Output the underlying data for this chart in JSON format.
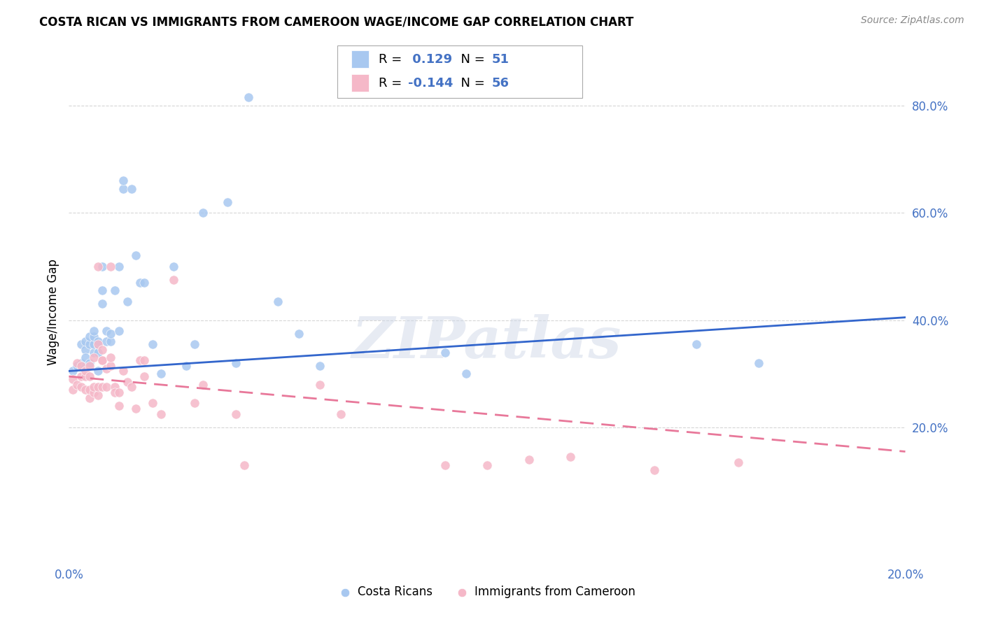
{
  "title": "COSTA RICAN VS IMMIGRANTS FROM CAMEROON WAGE/INCOME GAP CORRELATION CHART",
  "source": "Source: ZipAtlas.com",
  "ylabel_label": "Wage/Income Gap",
  "xlim": [
    0.0,
    0.2
  ],
  "ylim": [
    -0.05,
    0.88
  ],
  "xticks": [
    0.0,
    0.04,
    0.08,
    0.12,
    0.16,
    0.2
  ],
  "xticklabels": [
    "0.0%",
    "",
    "",
    "",
    "",
    "20.0%"
  ],
  "yticks": [
    0.2,
    0.4,
    0.6,
    0.8
  ],
  "yticklabels": [
    "20.0%",
    "40.0%",
    "60.0%",
    "80.0%"
  ],
  "blue_color": "#A8C8F0",
  "pink_color": "#F5B8C8",
  "blue_line_color": "#3366CC",
  "pink_line_color": "#E8789A",
  "tick_color": "#4472C4",
  "R_blue": 0.129,
  "N_blue": 51,
  "R_pink": -0.144,
  "N_pink": 56,
  "blue_scatter_x": [
    0.001,
    0.002,
    0.003,
    0.003,
    0.004,
    0.004,
    0.004,
    0.005,
    0.005,
    0.005,
    0.006,
    0.006,
    0.006,
    0.006,
    0.007,
    0.007,
    0.007,
    0.007,
    0.008,
    0.008,
    0.008,
    0.009,
    0.009,
    0.01,
    0.01,
    0.011,
    0.012,
    0.012,
    0.013,
    0.013,
    0.014,
    0.015,
    0.016,
    0.017,
    0.018,
    0.02,
    0.022,
    0.025,
    0.028,
    0.03,
    0.032,
    0.038,
    0.04,
    0.043,
    0.05,
    0.055,
    0.06,
    0.09,
    0.095,
    0.15,
    0.165
  ],
  "blue_scatter_y": [
    0.305,
    0.315,
    0.32,
    0.355,
    0.345,
    0.36,
    0.33,
    0.32,
    0.355,
    0.37,
    0.34,
    0.355,
    0.37,
    0.38,
    0.34,
    0.355,
    0.36,
    0.305,
    0.5,
    0.455,
    0.43,
    0.38,
    0.36,
    0.36,
    0.375,
    0.455,
    0.38,
    0.5,
    0.645,
    0.66,
    0.435,
    0.645,
    0.52,
    0.47,
    0.47,
    0.355,
    0.3,
    0.5,
    0.315,
    0.355,
    0.6,
    0.62,
    0.32,
    0.815,
    0.435,
    0.375,
    0.315,
    0.34,
    0.3,
    0.355,
    0.32
  ],
  "pink_scatter_x": [
    0.001,
    0.001,
    0.002,
    0.002,
    0.003,
    0.003,
    0.003,
    0.004,
    0.004,
    0.004,
    0.005,
    0.005,
    0.005,
    0.005,
    0.006,
    0.006,
    0.006,
    0.007,
    0.007,
    0.007,
    0.007,
    0.008,
    0.008,
    0.008,
    0.008,
    0.009,
    0.009,
    0.01,
    0.01,
    0.01,
    0.011,
    0.011,
    0.012,
    0.012,
    0.013,
    0.014,
    0.015,
    0.016,
    0.017,
    0.018,
    0.018,
    0.02,
    0.022,
    0.025,
    0.03,
    0.032,
    0.04,
    0.042,
    0.06,
    0.065,
    0.09,
    0.1,
    0.11,
    0.12,
    0.14,
    0.16
  ],
  "pink_scatter_y": [
    0.29,
    0.27,
    0.32,
    0.28,
    0.295,
    0.275,
    0.315,
    0.27,
    0.295,
    0.305,
    0.255,
    0.27,
    0.295,
    0.315,
    0.265,
    0.275,
    0.33,
    0.26,
    0.275,
    0.355,
    0.5,
    0.275,
    0.325,
    0.325,
    0.345,
    0.275,
    0.31,
    0.315,
    0.33,
    0.5,
    0.275,
    0.265,
    0.24,
    0.265,
    0.305,
    0.285,
    0.275,
    0.235,
    0.325,
    0.325,
    0.295,
    0.245,
    0.225,
    0.475,
    0.245,
    0.28,
    0.225,
    0.13,
    0.28,
    0.225,
    0.13,
    0.13,
    0.14,
    0.145,
    0.12,
    0.135
  ],
  "watermark": "ZIPatlas",
  "background_color": "#FFFFFF",
  "grid_color": "#CCCCCC"
}
